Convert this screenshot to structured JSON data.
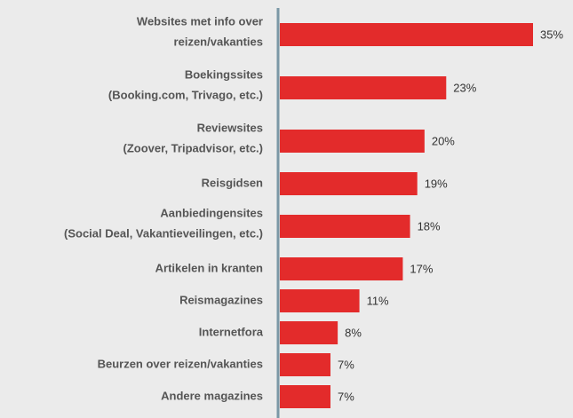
{
  "chart_data": {
    "type": "bar",
    "orientation": "horizontal",
    "categories": [
      [
        "Websites met info over",
        "reizen/vakanties"
      ],
      [
        "Boekingssites",
        "(Booking.com, Trivago, etc.)"
      ],
      [
        "Reviewsites",
        "(Zoover, Tripadvisor, etc.)"
      ],
      [
        "Reisgidsen"
      ],
      [
        "Aanbiedingensites",
        "(Social Deal, Vakantieveilingen, etc.)"
      ],
      [
        "Artikelen in kranten"
      ],
      [
        "Reismagazines"
      ],
      [
        "Internetfora"
      ],
      [
        "Beurzen over reizen/vakanties"
      ],
      [
        "Andere magazines"
      ]
    ],
    "values": [
      35,
      23,
      20,
      19,
      18,
      17,
      11,
      8,
      7,
      7
    ],
    "value_labels": [
      "35%",
      "23%",
      "20%",
      "19%",
      "18%",
      "17%",
      "11%",
      "8%",
      "7%",
      "7%"
    ],
    "color": "#e32b2b"
  }
}
